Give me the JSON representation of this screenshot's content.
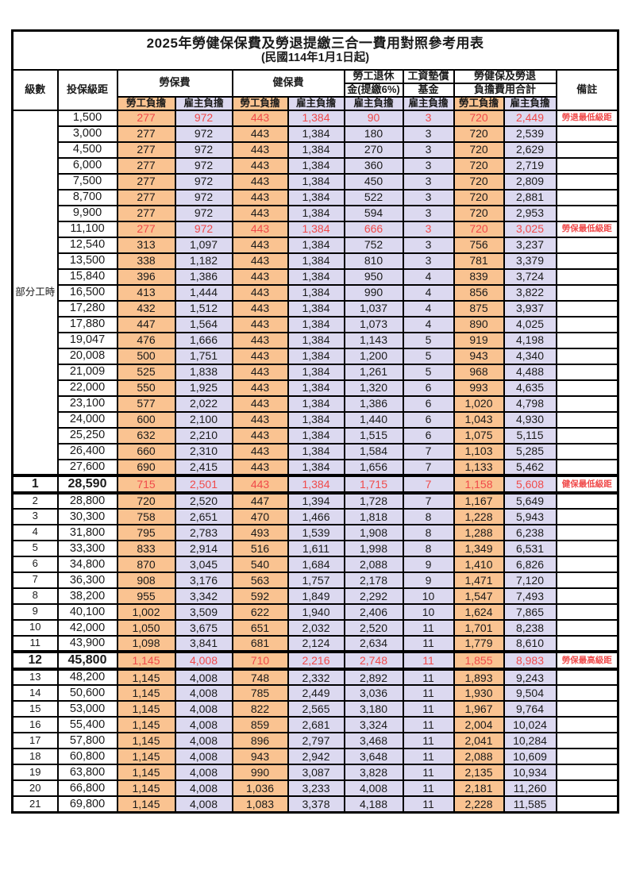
{
  "title": {
    "main": "2025年勞健保保費及勞退提繳三合一費用對照參考用表",
    "sub": "(民國114年1月1日起)"
  },
  "colors": {
    "employee_share_bg": "#fac391",
    "employer_share_bg": "#dcd9f0",
    "highlight_red": "#f04a4a",
    "border": "#000000"
  },
  "table": {
    "header": {
      "level": "級數",
      "salary": "投保級距",
      "labor_insurance": "勞保費",
      "health_insurance": "健保費",
      "pension_line1": "勞工退休",
      "pension_line2": "金(提繳6%)",
      "wage_fund_line1": "工資墊償",
      "wage_fund_line2": "基金",
      "total_line1": "勞健保及勞退",
      "total_line2": "負擔費用合計",
      "remark": "備註",
      "employee": "勞工負擔",
      "employer": "雇主負擔"
    },
    "part_time_label": "部分工時",
    "part_time_row_count": 23,
    "rows": [
      {
        "lv": "",
        "s": "1,500",
        "v": [
          "277",
          "972",
          "443",
          "1,384",
          "90",
          "3",
          "720",
          "2,449"
        ],
        "r": "勞退最低級距",
        "hl": "red"
      },
      {
        "lv": "",
        "s": "3,000",
        "v": [
          "277",
          "972",
          "443",
          "1,384",
          "180",
          "3",
          "720",
          "2,539"
        ],
        "r": "",
        "hl": ""
      },
      {
        "lv": "",
        "s": "4,500",
        "v": [
          "277",
          "972",
          "443",
          "1,384",
          "270",
          "3",
          "720",
          "2,629"
        ],
        "r": "",
        "hl": ""
      },
      {
        "lv": "",
        "s": "6,000",
        "v": [
          "277",
          "972",
          "443",
          "1,384",
          "360",
          "3",
          "720",
          "2,719"
        ],
        "r": "",
        "hl": ""
      },
      {
        "lv": "",
        "s": "7,500",
        "v": [
          "277",
          "972",
          "443",
          "1,384",
          "450",
          "3",
          "720",
          "2,809"
        ],
        "r": "",
        "hl": ""
      },
      {
        "lv": "",
        "s": "8,700",
        "v": [
          "277",
          "972",
          "443",
          "1,384",
          "522",
          "3",
          "720",
          "2,881"
        ],
        "r": "",
        "hl": ""
      },
      {
        "lv": "",
        "s": "9,900",
        "v": [
          "277",
          "972",
          "443",
          "1,384",
          "594",
          "3",
          "720",
          "2,953"
        ],
        "r": "",
        "hl": ""
      },
      {
        "lv": "",
        "s": "11,100",
        "v": [
          "277",
          "972",
          "443",
          "1,384",
          "666",
          "3",
          "720",
          "3,025"
        ],
        "r": "勞保最低級距",
        "hl": "red"
      },
      {
        "lv": "",
        "s": "12,540",
        "v": [
          "313",
          "1,097",
          "443",
          "1,384",
          "752",
          "3",
          "756",
          "3,237"
        ],
        "r": "",
        "hl": ""
      },
      {
        "lv": "",
        "s": "13,500",
        "v": [
          "338",
          "1,182",
          "443",
          "1,384",
          "810",
          "3",
          "781",
          "3,379"
        ],
        "r": "",
        "hl": ""
      },
      {
        "lv": "",
        "s": "15,840",
        "v": [
          "396",
          "1,386",
          "443",
          "1,384",
          "950",
          "4",
          "839",
          "3,724"
        ],
        "r": "",
        "hl": ""
      },
      {
        "lv": "",
        "s": "16,500",
        "v": [
          "413",
          "1,444",
          "443",
          "1,384",
          "990",
          "4",
          "856",
          "3,822"
        ],
        "r": "",
        "hl": ""
      },
      {
        "lv": "",
        "s": "17,280",
        "v": [
          "432",
          "1,512",
          "443",
          "1,384",
          "1,037",
          "4",
          "875",
          "3,937"
        ],
        "r": "",
        "hl": ""
      },
      {
        "lv": "",
        "s": "17,880",
        "v": [
          "447",
          "1,564",
          "443",
          "1,384",
          "1,073",
          "4",
          "890",
          "4,025"
        ],
        "r": "",
        "hl": ""
      },
      {
        "lv": "",
        "s": "19,047",
        "v": [
          "476",
          "1,666",
          "443",
          "1,384",
          "1,143",
          "5",
          "919",
          "4,198"
        ],
        "r": "",
        "hl": ""
      },
      {
        "lv": "",
        "s": "20,008",
        "v": [
          "500",
          "1,751",
          "443",
          "1,384",
          "1,200",
          "5",
          "943",
          "4,340"
        ],
        "r": "",
        "hl": ""
      },
      {
        "lv": "",
        "s": "21,009",
        "v": [
          "525",
          "1,838",
          "443",
          "1,384",
          "1,261",
          "5",
          "968",
          "4,488"
        ],
        "r": "",
        "hl": ""
      },
      {
        "lv": "",
        "s": "22,000",
        "v": [
          "550",
          "1,925",
          "443",
          "1,384",
          "1,320",
          "6",
          "993",
          "4,635"
        ],
        "r": "",
        "hl": ""
      },
      {
        "lv": "",
        "s": "23,100",
        "v": [
          "577",
          "2,022",
          "443",
          "1,384",
          "1,386",
          "6",
          "1,020",
          "4,798"
        ],
        "r": "",
        "hl": ""
      },
      {
        "lv": "",
        "s": "24,000",
        "v": [
          "600",
          "2,100",
          "443",
          "1,384",
          "1,440",
          "6",
          "1,043",
          "4,930"
        ],
        "r": "",
        "hl": ""
      },
      {
        "lv": "",
        "s": "25,250",
        "v": [
          "632",
          "2,210",
          "443",
          "1,384",
          "1,515",
          "6",
          "1,075",
          "5,115"
        ],
        "r": "",
        "hl": ""
      },
      {
        "lv": "",
        "s": "26,400",
        "v": [
          "660",
          "2,310",
          "443",
          "1,384",
          "1,584",
          "7",
          "1,103",
          "5,285"
        ],
        "r": "",
        "hl": ""
      },
      {
        "lv": "",
        "s": "27,600",
        "v": [
          "690",
          "2,415",
          "443",
          "1,384",
          "1,656",
          "7",
          "1,133",
          "5,462"
        ],
        "r": "",
        "hl": ""
      },
      {
        "lv": "1",
        "s": "28,590",
        "v": [
          "715",
          "2,501",
          "443",
          "1,384",
          "1,715",
          "7",
          "1,158",
          "5,608"
        ],
        "r": "健保最低級距",
        "hl": "red-bold"
      },
      {
        "lv": "2",
        "s": "28,800",
        "v": [
          "720",
          "2,520",
          "447",
          "1,394",
          "1,728",
          "7",
          "1,167",
          "5,649"
        ],
        "r": "",
        "hl": ""
      },
      {
        "lv": "3",
        "s": "30,300",
        "v": [
          "758",
          "2,651",
          "470",
          "1,466",
          "1,818",
          "8",
          "1,228",
          "5,943"
        ],
        "r": "",
        "hl": ""
      },
      {
        "lv": "4",
        "s": "31,800",
        "v": [
          "795",
          "2,783",
          "493",
          "1,539",
          "1,908",
          "8",
          "1,288",
          "6,238"
        ],
        "r": "",
        "hl": ""
      },
      {
        "lv": "5",
        "s": "33,300",
        "v": [
          "833",
          "2,914",
          "516",
          "1,611",
          "1,998",
          "8",
          "1,349",
          "6,531"
        ],
        "r": "",
        "hl": ""
      },
      {
        "lv": "6",
        "s": "34,800",
        "v": [
          "870",
          "3,045",
          "540",
          "1,684",
          "2,088",
          "9",
          "1,410",
          "6,826"
        ],
        "r": "",
        "hl": ""
      },
      {
        "lv": "7",
        "s": "36,300",
        "v": [
          "908",
          "3,176",
          "563",
          "1,757",
          "2,178",
          "9",
          "1,471",
          "7,120"
        ],
        "r": "",
        "hl": ""
      },
      {
        "lv": "8",
        "s": "38,200",
        "v": [
          "955",
          "3,342",
          "592",
          "1,849",
          "2,292",
          "10",
          "1,547",
          "7,493"
        ],
        "r": "",
        "hl": ""
      },
      {
        "lv": "9",
        "s": "40,100",
        "v": [
          "1,002",
          "3,509",
          "622",
          "1,940",
          "2,406",
          "10",
          "1,624",
          "7,865"
        ],
        "r": "",
        "hl": ""
      },
      {
        "lv": "10",
        "s": "42,000",
        "v": [
          "1,050",
          "3,675",
          "651",
          "2,032",
          "2,520",
          "11",
          "1,701",
          "8,238"
        ],
        "r": "",
        "hl": ""
      },
      {
        "lv": "11",
        "s": "43,900",
        "v": [
          "1,098",
          "3,841",
          "681",
          "2,124",
          "2,634",
          "11",
          "1,779",
          "8,610"
        ],
        "r": "",
        "hl": ""
      },
      {
        "lv": "12",
        "s": "45,800",
        "v": [
          "1,145",
          "4,008",
          "710",
          "2,216",
          "2,748",
          "11",
          "1,855",
          "8,983"
        ],
        "r": "勞保最高級距",
        "hl": "red-bold"
      },
      {
        "lv": "13",
        "s": "48,200",
        "v": [
          "1,145",
          "4,008",
          "748",
          "2,332",
          "2,892",
          "11",
          "1,893",
          "9,243"
        ],
        "r": "",
        "hl": ""
      },
      {
        "lv": "14",
        "s": "50,600",
        "v": [
          "1,145",
          "4,008",
          "785",
          "2,449",
          "3,036",
          "11",
          "1,930",
          "9,504"
        ],
        "r": "",
        "hl": ""
      },
      {
        "lv": "15",
        "s": "53,000",
        "v": [
          "1,145",
          "4,008",
          "822",
          "2,565",
          "3,180",
          "11",
          "1,967",
          "9,764"
        ],
        "r": "",
        "hl": ""
      },
      {
        "lv": "16",
        "s": "55,400",
        "v": [
          "1,145",
          "4,008",
          "859",
          "2,681",
          "3,324",
          "11",
          "2,004",
          "10,024"
        ],
        "r": "",
        "hl": ""
      },
      {
        "lv": "17",
        "s": "57,800",
        "v": [
          "1,145",
          "4,008",
          "896",
          "2,797",
          "3,468",
          "11",
          "2,041",
          "10,284"
        ],
        "r": "",
        "hl": ""
      },
      {
        "lv": "18",
        "s": "60,800",
        "v": [
          "1,145",
          "4,008",
          "943",
          "2,942",
          "3,648",
          "11",
          "2,088",
          "10,609"
        ],
        "r": "",
        "hl": ""
      },
      {
        "lv": "19",
        "s": "63,800",
        "v": [
          "1,145",
          "4,008",
          "990",
          "3,087",
          "3,828",
          "11",
          "2,135",
          "10,934"
        ],
        "r": "",
        "hl": ""
      },
      {
        "lv": "20",
        "s": "66,800",
        "v": [
          "1,145",
          "4,008",
          "1,036",
          "3,233",
          "4,008",
          "11",
          "2,181",
          "11,260"
        ],
        "r": "",
        "hl": ""
      },
      {
        "lv": "21",
        "s": "69,800",
        "v": [
          "1,145",
          "4,008",
          "1,083",
          "3,378",
          "4,188",
          "11",
          "2,228",
          "11,585"
        ],
        "r": "",
        "hl": ""
      }
    ]
  }
}
